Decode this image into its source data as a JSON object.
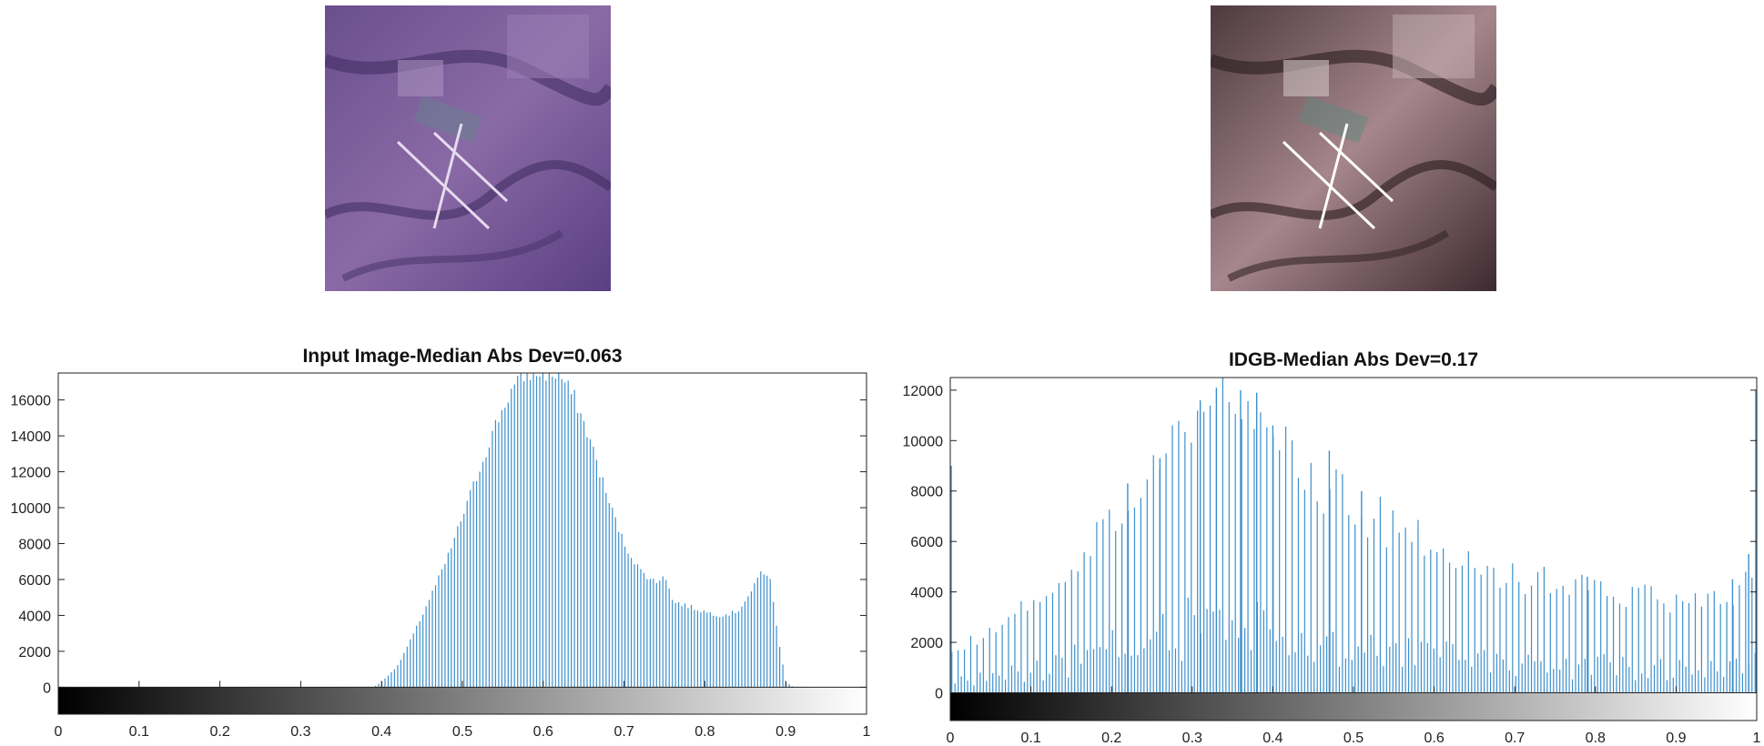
{
  "images": [
    {
      "name": "input-satellite-image",
      "tint": "#7b5a9e"
    },
    {
      "name": "enhanced-satellite-image",
      "tint": "#8a6a6a"
    }
  ],
  "chart_data": [
    {
      "type": "bar",
      "title": "Input Image-Median Abs Dev=0.063",
      "xlabel": "",
      "ylabel": "",
      "xlim": [
        0,
        1
      ],
      "ylim": [
        0,
        17500
      ],
      "ylim_shown_with_colorbar": [
        -1500,
        17500
      ],
      "yticks": [
        "0",
        "2000",
        "4000",
        "6000",
        "8000",
        "10000",
        "12000",
        "14000",
        "16000"
      ],
      "xticks": [
        "0",
        "0.1",
        "0.2",
        "0.3",
        "0.4",
        "0.5",
        "0.6",
        "0.7",
        "0.8",
        "0.9",
        "1"
      ],
      "colorbar": "grayscale 0 to 1",
      "bar_color": "#3d8fcb",
      "bins": 256,
      "envelope": {
        "x": [
          0.39,
          0.4,
          0.42,
          0.44,
          0.46,
          0.48,
          0.5,
          0.52,
          0.54,
          0.56,
          0.58,
          0.6,
          0.62,
          0.64,
          0.66,
          0.68,
          0.7,
          0.72,
          0.74,
          0.75,
          0.76,
          0.78,
          0.8,
          0.82,
          0.84,
          0.86,
          0.87,
          0.88,
          0.89,
          0.9,
          0.91
        ],
        "y": [
          0,
          300,
          1200,
          3000,
          5000,
          7000,
          9500,
          12000,
          14500,
          16500,
          17500,
          17500,
          17400,
          16000,
          13500,
          10500,
          8000,
          6500,
          5800,
          6400,
          4800,
          4500,
          4200,
          4000,
          4200,
          5500,
          6500,
          6200,
          3000,
          300,
          0
        ]
      }
    },
    {
      "type": "bar",
      "title": "IDGB-Median Abs Dev=0.17",
      "xlabel": "",
      "ylabel": "",
      "xlim": [
        0,
        1
      ],
      "ylim": [
        0,
        12500
      ],
      "ylim_shown_with_colorbar": [
        -1100,
        12500
      ],
      "yticks": [
        "0",
        "2000",
        "4000",
        "6000",
        "8000",
        "10000",
        "12000"
      ],
      "xticks": [
        "0",
        "0.1",
        "0.2",
        "0.3",
        "0.4",
        "0.5",
        "0.6",
        "0.7",
        "0.8",
        "0.9",
        "1"
      ],
      "colorbar": "grayscale 0 to 1",
      "bar_color": "#3d8fcb",
      "bins": 256,
      "envelope": {
        "x": [
          0.0,
          0.05,
          0.1,
          0.15,
          0.2,
          0.25,
          0.3,
          0.33,
          0.35,
          0.38,
          0.4,
          0.45,
          0.5,
          0.55,
          0.6,
          0.65,
          0.7,
          0.75,
          0.8,
          0.85,
          0.9,
          0.95,
          1.0
        ],
        "y": [
          1500,
          2500,
          3500,
          5000,
          7000,
          8500,
          10500,
          12000,
          11500,
          11000,
          10500,
          8500,
          7500,
          6500,
          6000,
          5000,
          4500,
          4300,
          4300,
          3800,
          3500,
          3800,
          4500
        ]
      },
      "spikes": [
        {
          "x": 0.0,
          "y": 9000
        },
        {
          "x": 1.0,
          "y": 12000
        },
        {
          "x": 0.33,
          "y": 12100
        },
        {
          "x": 0.36,
          "y": 12000
        },
        {
          "x": 0.31,
          "y": 11600
        },
        {
          "x": 0.38,
          "y": 11900
        },
        {
          "x": 0.4,
          "y": 10600
        },
        {
          "x": 0.26,
          "y": 9300
        },
        {
          "x": 0.22,
          "y": 8300
        },
        {
          "x": 0.47,
          "y": 9600
        },
        {
          "x": 0.51,
          "y": 8000
        },
        {
          "x": 0.79,
          "y": 4600
        },
        {
          "x": 0.97,
          "y": 4500
        },
        {
          "x": 0.99,
          "y": 5500
        }
      ],
      "alternating_gaps": true
    }
  ]
}
